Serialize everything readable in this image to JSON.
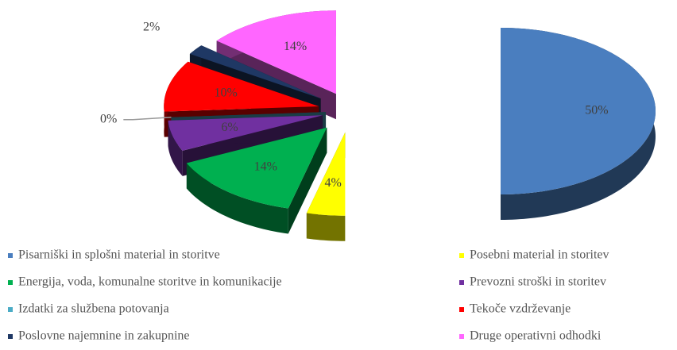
{
  "chart_data": {
    "type": "pie",
    "categories": [
      "Pisarniški in splošni material in storitve",
      "Posebni material in storitev",
      "Energija, voda, komunalne storitve in komunikacije",
      "Prevozni stroški in storitev",
      "Izdatki za službena potovanja",
      "Tekoče vzdrževanje",
      "Poslovne najemnine in zakupnine",
      "Druge operativni odhodki"
    ],
    "values": [
      50,
      4,
      14,
      6,
      0,
      10,
      2,
      14
    ],
    "value_labels": [
      "50%",
      "4%",
      "14%",
      "6%",
      "0%",
      "10%",
      "2%",
      "14%"
    ],
    "colors": [
      "#4a7ebf",
      "#ffff00",
      "#00b050",
      "#7030a0",
      "#4bacc6",
      "#ff0000",
      "#1f3864",
      "#ff66ff"
    ],
    "legend": "bottom"
  }
}
